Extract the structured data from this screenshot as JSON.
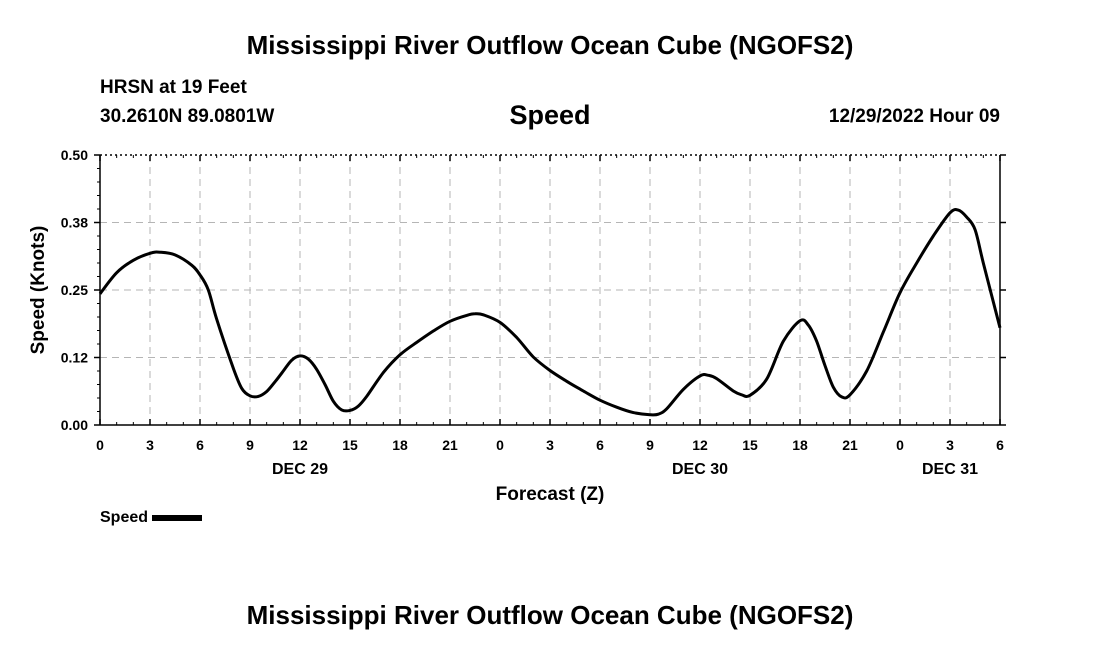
{
  "header": {
    "title": "Mississippi River Outflow Ocean Cube (NGOFS2)",
    "station_line1": "HRSN at 19 Feet",
    "station_line2": "30.2610N  89.0801W",
    "subtitle": "Speed",
    "timestamp": "12/29/2022 Hour 09"
  },
  "footer": {
    "title": "Mississippi River Outflow Ocean Cube (NGOFS2)"
  },
  "legend": {
    "label": "Speed"
  },
  "chart_data": {
    "type": "line",
    "title": "Speed",
    "xlabel": "Forecast (Z)",
    "ylabel": "Speed (Knots)",
    "xlim": [
      0,
      54
    ],
    "ylim": [
      0,
      0.5
    ],
    "x_ticks": [
      "0",
      "3",
      "6",
      "9",
      "12",
      "15",
      "18",
      "21",
      "0",
      "3",
      "6",
      "9",
      "12",
      "15",
      "18",
      "21",
      "0",
      "3",
      "6"
    ],
    "y_ticks": [
      "0.00",
      "0.12",
      "0.25",
      "0.38",
      "0.50"
    ],
    "y_tick_values": [
      0,
      0.125,
      0.25,
      0.375,
      0.5
    ],
    "date_labels": [
      {
        "text": "DEC 29",
        "x": 12
      },
      {
        "text": "DEC 30",
        "x": 36
      },
      {
        "text": "DEC 31",
        "x": 51
      }
    ],
    "grid": true,
    "series": [
      {
        "name": "Speed",
        "color": "#000000",
        "x": [
          0,
          1,
          2,
          3,
          3.6,
          4.5,
          5.5,
          6,
          6.5,
          7,
          8,
          8.5,
          9,
          9.5,
          10,
          10.5,
          11,
          11.5,
          12,
          12.5,
          13,
          13.5,
          14,
          14.5,
          15,
          15.5,
          16,
          17,
          18,
          19,
          20,
          21,
          22,
          22.5,
          23,
          24,
          25,
          26,
          27,
          28,
          29,
          30,
          31,
          32,
          33,
          33.5,
          34,
          35,
          36,
          36.5,
          37,
          38,
          38.5,
          39,
          40,
          41,
          42,
          42.5,
          43,
          43.5,
          44,
          44.5,
          45,
          46,
          47,
          48,
          49,
          50,
          51,
          51.5,
          52,
          52.5,
          53,
          54
        ],
        "y": [
          0.243,
          0.282,
          0.305,
          0.318,
          0.32,
          0.315,
          0.296,
          0.278,
          0.25,
          0.196,
          0.105,
          0.068,
          0.054,
          0.053,
          0.062,
          0.08,
          0.1,
          0.12,
          0.128,
          0.122,
          0.103,
          0.075,
          0.044,
          0.028,
          0.027,
          0.035,
          0.053,
          0.097,
          0.13,
          0.153,
          0.174,
          0.192,
          0.203,
          0.206,
          0.204,
          0.19,
          0.162,
          0.126,
          0.101,
          0.081,
          0.063,
          0.046,
          0.033,
          0.023,
          0.019,
          0.02,
          0.03,
          0.066,
          0.091,
          0.092,
          0.086,
          0.063,
          0.056,
          0.055,
          0.085,
          0.155,
          0.193,
          0.185,
          0.155,
          0.11,
          0.07,
          0.052,
          0.056,
          0.1,
          0.172,
          0.245,
          0.3,
          0.35,
          0.393,
          0.398,
          0.385,
          0.362,
          0.3,
          0.18
        ]
      }
    ]
  }
}
